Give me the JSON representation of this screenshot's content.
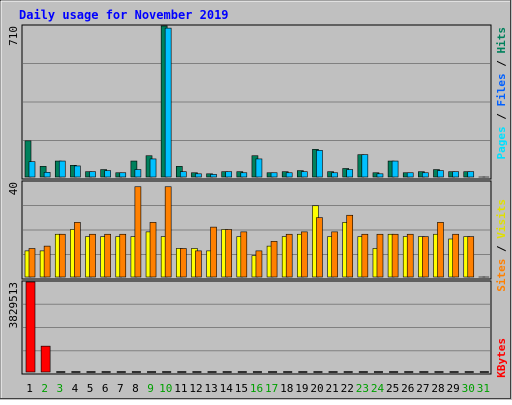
{
  "title": "Daily usage for November 2019",
  "colors": {
    "background": "#C0C0C0",
    "title": "#0000FF",
    "hits": "#00805C",
    "files": "#00C0FF",
    "pages": "#00E0FF",
    "visits": "#FFFF00",
    "sites": "#FF8000",
    "kbytes": "#FF0000",
    "grid": "#808080",
    "weekend_label": "#00A000"
  },
  "chart_data": [
    {
      "type": "bar",
      "name": "hits-files-pages",
      "panel_max_label": "710",
      "ylim": [
        0,
        710
      ],
      "grid": true,
      "side_label": [
        "Pages",
        "Files",
        "Hits"
      ],
      "x": [
        "1",
        "2",
        "3",
        "4",
        "5",
        "6",
        "7",
        "8",
        "9",
        "10",
        "11",
        "12",
        "13",
        "14",
        "15",
        "16",
        "17",
        "18",
        "19",
        "20",
        "21",
        "22",
        "23",
        "24",
        "25",
        "26",
        "27",
        "28",
        "29",
        "30",
        "31"
      ],
      "series": [
        {
          "name": "Hits",
          "values": [
            170,
            50,
            75,
            55,
            25,
            35,
            20,
            75,
            100,
            710,
            50,
            20,
            15,
            25,
            25,
            100,
            20,
            25,
            30,
            130,
            25,
            40,
            105,
            20,
            75,
            20,
            25,
            35,
            25,
            25,
            0
          ]
        },
        {
          "name": "Files",
          "values": [
            72,
            22,
            75,
            52,
            25,
            30,
            20,
            35,
            85,
            700,
            25,
            15,
            12,
            25,
            20,
            85,
            20,
            20,
            25,
            125,
            20,
            35,
            105,
            15,
            75,
            20,
            20,
            30,
            25,
            25,
            0
          ]
        },
        {
          "name": "Pages",
          "values": [
            0,
            0,
            0,
            0,
            0,
            0,
            0,
            0,
            0,
            0,
            0,
            0,
            0,
            0,
            0,
            0,
            0,
            0,
            0,
            0,
            0,
            0,
            0,
            0,
            0,
            0,
            0,
            0,
            0,
            0,
            0
          ]
        }
      ]
    },
    {
      "type": "bar",
      "name": "visits-sites",
      "panel_max_label": "40",
      "ylim": [
        0,
        40
      ],
      "grid": true,
      "side_label": [
        "Sites",
        "Visits"
      ],
      "x": [
        "1",
        "2",
        "3",
        "4",
        "5",
        "6",
        "7",
        "8",
        "9",
        "10",
        "11",
        "12",
        "13",
        "14",
        "15",
        "16",
        "17",
        "18",
        "19",
        "20",
        "21",
        "22",
        "23",
        "24",
        "25",
        "26",
        "27",
        "28",
        "29",
        "30",
        "31"
      ],
      "series": [
        {
          "name": "Visits",
          "values": [
            11,
            11,
            18,
            20,
            17,
            17,
            17,
            17,
            19,
            17,
            12,
            12,
            11,
            20,
            17,
            9,
            13,
            17,
            18,
            30,
            17,
            23,
            17,
            12,
            18,
            17,
            17,
            18,
            16,
            17,
            0
          ]
        },
        {
          "name": "Sites",
          "values": [
            12,
            13,
            18,
            23,
            18,
            18,
            18,
            38,
            23,
            38,
            12,
            11,
            21,
            20,
            19,
            11,
            15,
            18,
            19,
            25,
            19,
            26,
            18,
            18,
            18,
            18,
            17,
            23,
            18,
            17,
            0
          ]
        }
      ]
    },
    {
      "type": "bar",
      "name": "kbytes",
      "panel_max_label": "3829513",
      "ylim": [
        0,
        3829513
      ],
      "grid": true,
      "side_label": [
        "KBytes"
      ],
      "x": [
        "1",
        "2",
        "3",
        "4",
        "5",
        "6",
        "7",
        "8",
        "9",
        "10",
        "11",
        "12",
        "13",
        "14",
        "15",
        "16",
        "17",
        "18",
        "19",
        "20",
        "21",
        "22",
        "23",
        "24",
        "25",
        "26",
        "27",
        "28",
        "29",
        "30",
        "31"
      ],
      "series": [
        {
          "name": "KBytes",
          "values": [
            3829513,
            1100000,
            0,
            0,
            0,
            0,
            0,
            0,
            0,
            0,
            0,
            0,
            0,
            0,
            0,
            0,
            0,
            0,
            0,
            0,
            0,
            0,
            0,
            0,
            0,
            0,
            0,
            0,
            0,
            0,
            0
          ]
        }
      ]
    }
  ],
  "weekend_days": [
    "2",
    "3",
    "9",
    "10",
    "16",
    "17",
    "23",
    "24",
    "30",
    "31"
  ]
}
